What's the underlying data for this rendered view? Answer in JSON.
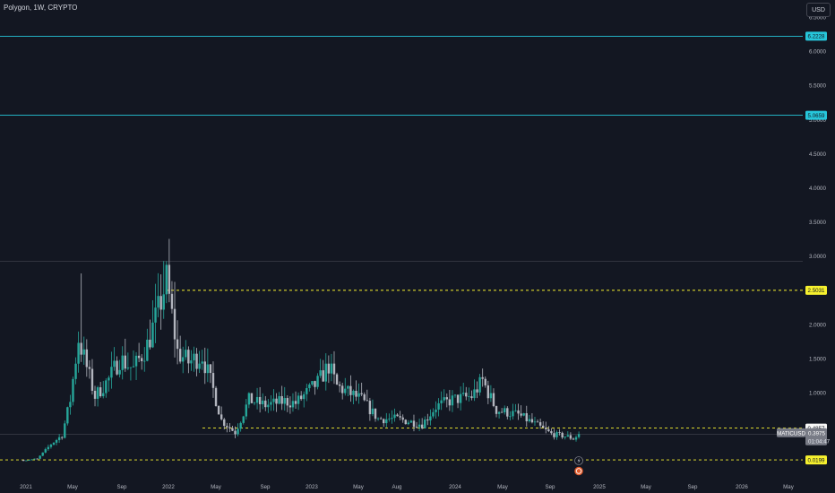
{
  "header": {
    "symbol_title": "Polygon, 1W, CRYPTO",
    "currency_button": "USD"
  },
  "colors": {
    "background": "#131722",
    "up_candle": "#26a69a",
    "down_candle": "#b2b5be",
    "cyan_level": "#26c6da",
    "yellow_level": "#f7f12e",
    "grid_line": "#434651",
    "axis_text": "#b2b5be"
  },
  "price_axis": {
    "ticks": [
      "6.5000",
      "6.0000",
      "5.5000",
      "5.0000",
      "4.5000",
      "4.0000",
      "3.5000",
      "3.0000",
      "2.5000",
      "2.0000",
      "1.5000",
      "1.0000",
      "0.5000"
    ]
  },
  "time_axis": {
    "labels": [
      "2021",
      "May",
      "Sep",
      "2022",
      "May",
      "Sep",
      "2023",
      "May",
      "Aug",
      "2024",
      "May",
      "Sep",
      "2025",
      "May",
      "Sep",
      "2026",
      "May"
    ]
  },
  "levels": [
    {
      "label": "6.2228",
      "style": "cyan-solid"
    },
    {
      "label": "5.0659",
      "style": "cyan-solid"
    },
    {
      "label": "2.5031",
      "style": "yellow-dashed"
    },
    {
      "label": "0.4857",
      "style": "yellow-dashed"
    },
    {
      "label": "0.0199",
      "style": "yellow-dashed"
    }
  ],
  "last_price": {
    "symbol": "MATICUSD",
    "price": "0.3975",
    "countdown": "01:04:47"
  },
  "icons": [
    "flash-icon",
    "earnings-icon"
  ],
  "chart_data": {
    "type": "candlestick",
    "title": "Polygon, 1W, CRYPTO",
    "ylim": [
      0,
      6.6
    ],
    "levels": [
      6.2228,
      5.0659,
      2.5031,
      0.4857,
      0.0199
    ],
    "anchor_points": [
      [
        "2020-12-28",
        0.02
      ],
      [
        "2021-02-01",
        0.03
      ],
      [
        "2021-03-08",
        0.25
      ],
      [
        "2021-04-05",
        0.38
      ],
      [
        "2021-04-26",
        0.9
      ],
      [
        "2021-05-17",
        1.8
      ],
      [
        "2021-06-28",
        0.95
      ],
      [
        "2021-08-02",
        1.2
      ],
      [
        "2021-08-30",
        1.5
      ],
      [
        "2021-10-04",
        1.35
      ],
      [
        "2021-11-08",
        1.7
      ],
      [
        "2021-12-06",
        2.2
      ],
      [
        "2021-12-27",
        2.65
      ],
      [
        "2022-01-24",
        1.6
      ],
      [
        "2022-02-21",
        1.45
      ],
      [
        "2022-03-28",
        1.55
      ],
      [
        "2022-04-25",
        1.05
      ],
      [
        "2022-05-16",
        0.6
      ],
      [
        "2022-06-20",
        0.42
      ],
      [
        "2022-07-25",
        0.9
      ],
      [
        "2022-09-05",
        0.82
      ],
      [
        "2022-10-24",
        0.88
      ],
      [
        "2022-11-21",
        0.85
      ],
      [
        "2023-01-16",
        1.15
      ],
      [
        "2023-02-13",
        1.4
      ],
      [
        "2023-03-06",
        1.1
      ],
      [
        "2023-05-08",
        0.9
      ],
      [
        "2023-06-19",
        0.62
      ],
      [
        "2023-08-07",
        0.62
      ],
      [
        "2023-10-09",
        0.54
      ],
      [
        "2023-11-13",
        0.8
      ],
      [
        "2023-12-25",
        0.9
      ],
      [
        "2024-02-12",
        0.95
      ],
      [
        "2024-03-11",
        1.18
      ],
      [
        "2024-04-15",
        0.75
      ],
      [
        "2024-06-10",
        0.68
      ],
      [
        "2024-07-29",
        0.52
      ],
      [
        "2024-09-02",
        0.4
      ],
      [
        "2024-10-14",
        0.36
      ],
      [
        "2024-10-28",
        0.33
      ],
      [
        "2024-11-11",
        0.3975
      ]
    ]
  }
}
